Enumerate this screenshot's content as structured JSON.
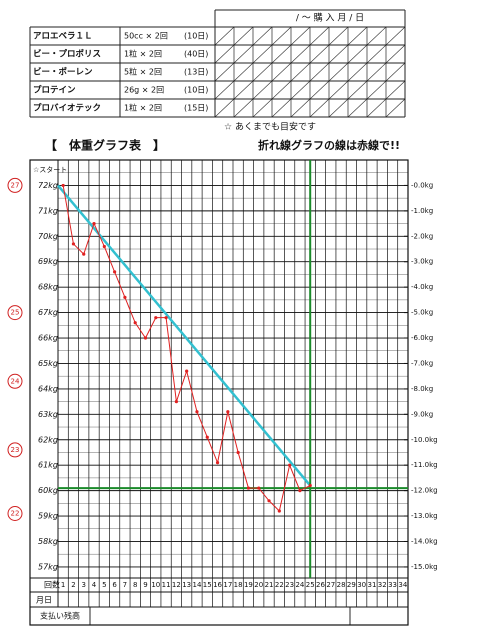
{
  "header": {
    "purchase_date": "/ ～ 購 入 月 / 日"
  },
  "supplements": [
    {
      "name": "アロエベラ１Ｌ",
      "dose": "50cc × 2回",
      "days": "(10日)"
    },
    {
      "name": "ビー・プロポリス",
      "dose": "1粒 × 2回",
      "days": "(40日)"
    },
    {
      "name": "ビー・ポーレン",
      "dose": "5粒 × 2回",
      "days": "(13日)"
    },
    {
      "name": "プロテイン",
      "dose": "26g × 2回",
      "days": "(10日)"
    },
    {
      "name": "プロバイオテック",
      "dose": "1粒 × 2回",
      "days": "(15日)"
    }
  ],
  "note": "☆ あくまでも目安です",
  "chart_data": {
    "type": "line",
    "title": "【　体重グラフ表　】",
    "subtitle": "折れ線グラフの線は赤線で!!",
    "start_label": "☆スタート",
    "x": [
      1,
      2,
      3,
      4,
      5,
      6,
      7,
      8,
      9,
      10,
      11,
      12,
      13,
      14,
      15,
      16,
      17,
      18,
      19,
      20,
      21,
      22,
      23,
      24,
      25
    ],
    "series": [
      {
        "color": "#e02020",
        "values": [
          72.0,
          69.7,
          69.3,
          70.5,
          69.6,
          68.6,
          67.6,
          66.6,
          66.0,
          66.8,
          66.8,
          63.5,
          64.7,
          63.1,
          62.1,
          61.1,
          63.1,
          61.5,
          60.1,
          60.1,
          59.6,
          59.2,
          61.0,
          60.0,
          60.2
        ]
      }
    ],
    "target_line": {
      "color": "#33c0d0",
      "x": [
        0.5,
        25
      ],
      "values": [
        72.0,
        60.2
      ]
    },
    "goal": {
      "color": "#1a8a2a",
      "x": 25,
      "y": 60.1
    },
    "xlim": [
      0,
      34
    ],
    "xticks": [
      1,
      2,
      3,
      4,
      5,
      6,
      7,
      8,
      9,
      10,
      11,
      12,
      13,
      14,
      15,
      16,
      17,
      18,
      19,
      20,
      21,
      22,
      23,
      24,
      25,
      26,
      27,
      28,
      29,
      30,
      31,
      32,
      33,
      34
    ],
    "ylim": [
      56.8,
      73
    ],
    "yticks": [
      {
        "value": 72,
        "label": "72kg"
      },
      {
        "value": 71,
        "label": "71kg"
      },
      {
        "value": 70,
        "label": "70kg"
      },
      {
        "value": 69,
        "label": "69kg"
      },
      {
        "value": 68,
        "label": "68kg"
      },
      {
        "value": 67,
        "label": "67kg"
      },
      {
        "value": 66,
        "label": "66kg"
      },
      {
        "value": 65,
        "label": "65kg"
      },
      {
        "value": 64,
        "label": "64kg"
      },
      {
        "value": 63,
        "label": "63kg"
      },
      {
        "value": 62,
        "label": "62kg"
      },
      {
        "value": 61,
        "label": "61kg"
      },
      {
        "value": 60,
        "label": "60kg"
      },
      {
        "value": 59,
        "label": "59kg"
      },
      {
        "value": 58,
        "label": "58kg"
      },
      {
        "value": 57,
        "label": "57kg"
      }
    ],
    "y2lim": [
      -15.2,
      1.0
    ],
    "y2ticks": [
      {
        "value": 0,
        "label": "-0.0kg"
      },
      {
        "value": -1,
        "label": "-1.0kg"
      },
      {
        "value": -2,
        "label": "-2.0kg"
      },
      {
        "value": -3,
        "label": "-3.0kg"
      },
      {
        "value": -4,
        "label": "-4.0kg"
      },
      {
        "value": -5,
        "label": "-5.0kg"
      },
      {
        "value": -6,
        "label": "-6.0kg"
      },
      {
        "value": -7,
        "label": "-7.0kg"
      },
      {
        "value": -8,
        "label": "-8.0kg"
      },
      {
        "value": -9,
        "label": "-9.0kg"
      },
      {
        "value": -10,
        "label": "-10.0kg"
      },
      {
        "value": -11,
        "label": "-11.0kg"
      },
      {
        "value": -12,
        "label": "-12.0kg"
      },
      {
        "value": -13,
        "label": "-13.0kg"
      },
      {
        "value": -14,
        "label": "-14.0kg"
      },
      {
        "value": -15,
        "label": "-15.0kg"
      }
    ],
    "side_notes": [
      {
        "value": 72,
        "label": "27"
      },
      {
        "value": 67,
        "label": "25"
      },
      {
        "value": 64.3,
        "label": "24"
      },
      {
        "value": 61.6,
        "label": "23"
      },
      {
        "value": 59.1,
        "label": "22"
      }
    ],
    "grid": true
  },
  "bottom_table": {
    "count_label": "回数",
    "date_label": "月日",
    "balance_label": "支払い残高"
  }
}
